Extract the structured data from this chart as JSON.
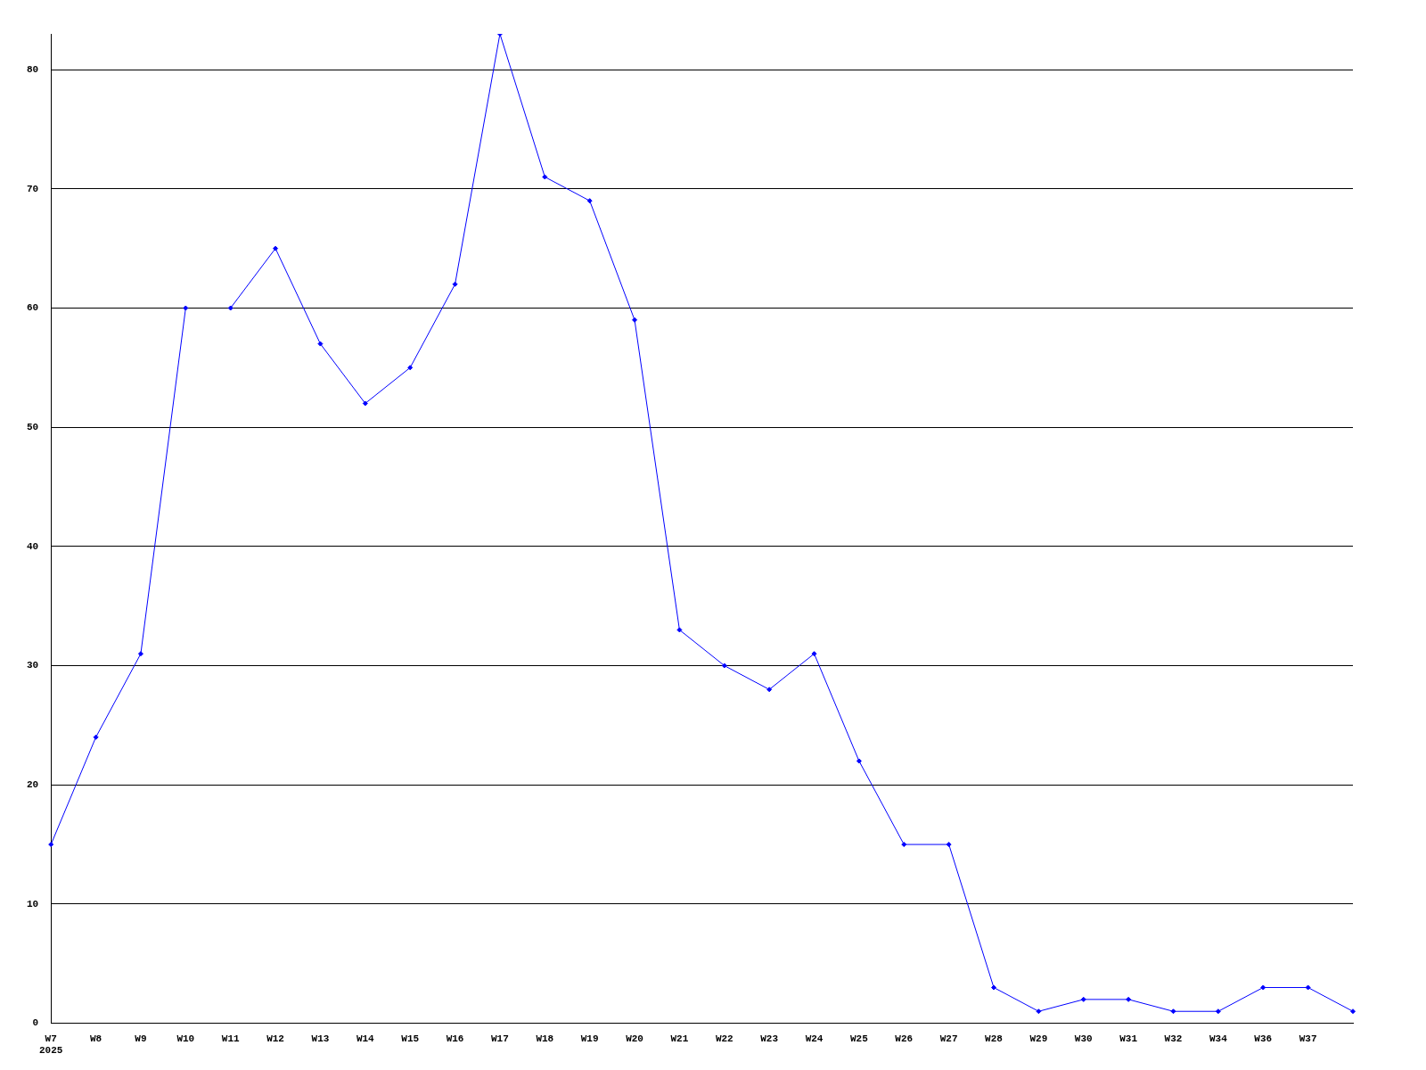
{
  "chart_data": {
    "type": "line",
    "categories": [
      "W7\n2025",
      "W8",
      "W9",
      "W10",
      "W11",
      "W12",
      "W13",
      "W14",
      "W15",
      "W16",
      "W17",
      "W18",
      "W19",
      "W20",
      "W21",
      "W22",
      "W23",
      "W24",
      "W25",
      "W26",
      "W27",
      "W28",
      "W29",
      "W30",
      "W31",
      "W32",
      "W34",
      "W36",
      "W37",
      null
    ],
    "series": [
      {
        "color": "#0000ff",
        "values": [
          15,
          24,
          31,
          60,
          null,
          null,
          null,
          null,
          null,
          null,
          null,
          null,
          null,
          null,
          null,
          null,
          null,
          null,
          null,
          null,
          null,
          null,
          null,
          null,
          null,
          null,
          null,
          null,
          null,
          null
        ]
      },
      {
        "color": "#0000ff",
        "values": [
          null,
          null,
          null,
          null,
          60,
          65,
          57,
          52,
          55,
          62,
          83,
          71,
          69,
          59,
          33,
          30,
          28,
          31,
          22,
          15,
          15,
          3,
          1,
          2,
          2,
          1,
          1,
          3,
          3,
          1
        ]
      }
    ],
    "ylim": [
      0,
      83
    ],
    "yticks": [
      0,
      10,
      20,
      30,
      40,
      50,
      60,
      70,
      80
    ],
    "grid": "y",
    "legend": false,
    "marker": "diamond",
    "line_style": "solid"
  }
}
